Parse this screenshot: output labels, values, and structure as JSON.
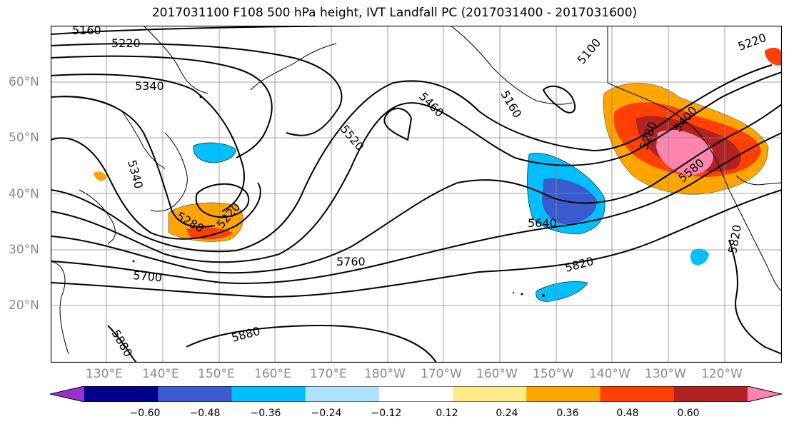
{
  "title": "2017031100 F108 500 hPa height, IVT Landfall PC (2017031400 - 2017031600)",
  "lat_labels": [
    "60°N",
    "50°N",
    "40°N",
    "30°N",
    "20°N"
  ],
  "lon_labels": [
    "130°E",
    "140°E",
    "150°E",
    "160°E",
    "170°E",
    "180°W",
    "170°W",
    "160°W",
    "150°W",
    "140°W",
    "130°W",
    "120°W"
  ],
  "contour_labels": [
    "5160",
    "5220",
    "5340",
    "5460",
    "5520",
    "5160",
    "5100",
    "5220",
    "5340",
    "5280",
    "5220",
    "5280",
    "5400",
    "5580",
    "5640",
    "5700",
    "5760",
    "5820",
    "5880",
    "5880",
    "5820"
  ],
  "colorbar": {
    "ticks": [
      "−0.60",
      "−0.48",
      "−0.36",
      "−0.24",
      "−0.12",
      "0.12",
      "0.24",
      "0.36",
      "0.48",
      "0.60"
    ],
    "colors": [
      "#9932cc",
      "#00008b",
      "#3a5bd0",
      "#00bfff",
      "#b0e0ff",
      "#ffffff",
      "#ffeb8a",
      "#ffa500",
      "#ff4000",
      "#b22222",
      "#ff85b0"
    ]
  }
}
